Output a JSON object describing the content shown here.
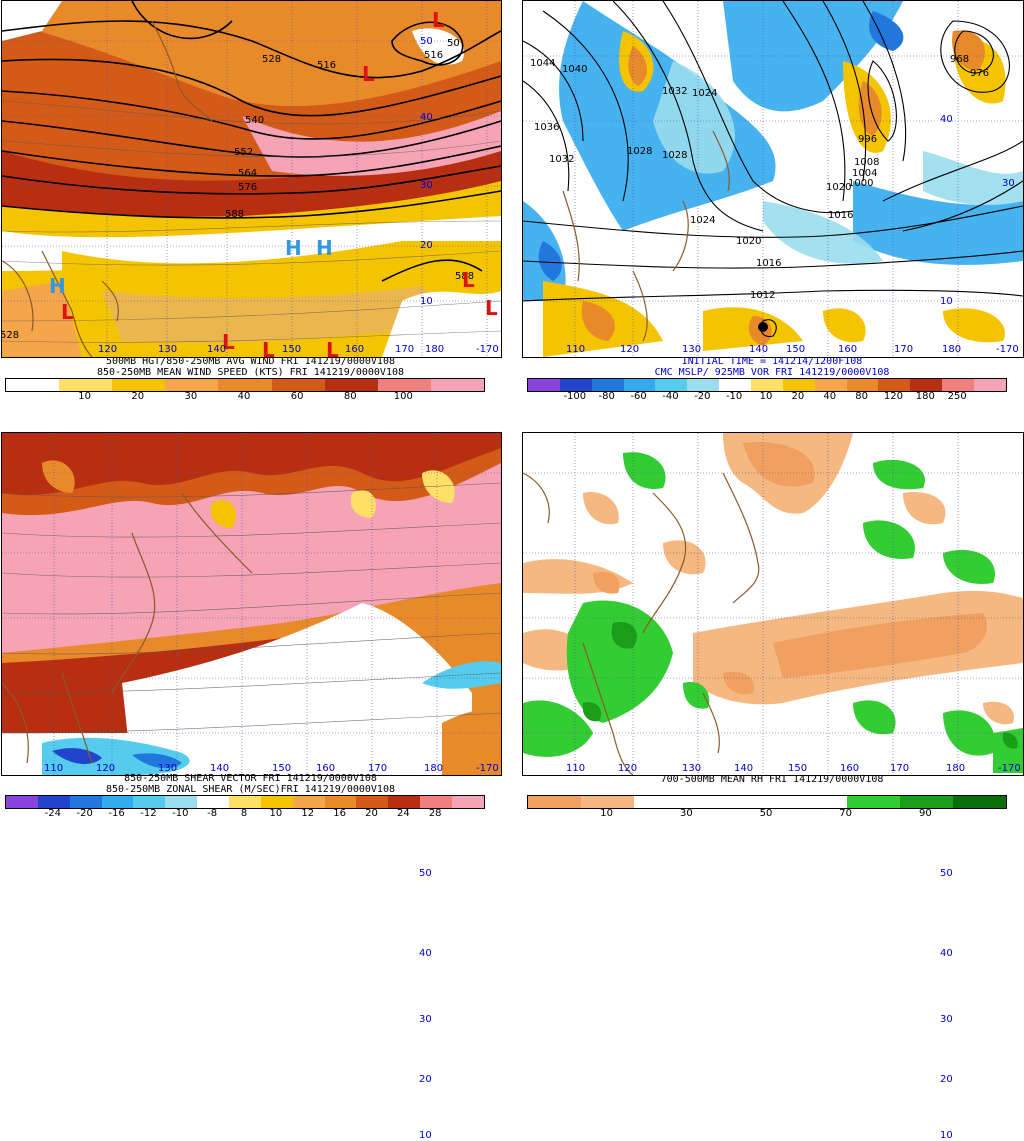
{
  "panels": [
    {
      "id": "tl",
      "caption_lines": [
        "500MB HGT/850-250MB AVG WIND FRI 141219/0000V108",
        "850-250MB MEAN WIND SPEED (KTS) FRI 141219/0000V108"
      ],
      "colorbar": {
        "labels": [
          "10",
          "20",
          "30",
          "40",
          "60",
          "80",
          "100"
        ],
        "colors": [
          "#ffffff",
          "#ffe066",
          "#f5c400",
          "#f5a64a",
          "#e8892a",
          "#d45a18",
          "#b82e10",
          "#f08080",
          "#f5a3b5"
        ]
      },
      "lon_labels": [
        "120",
        "130",
        "140",
        "150",
        "160",
        "170",
        "180",
        "-170"
      ],
      "lat_labels": [
        "50",
        "40",
        "30",
        "20",
        "10"
      ],
      "contour_labels": [
        "528",
        "516",
        "540",
        "552",
        "564",
        "576",
        "588",
        "588",
        "528",
        "50",
        "516"
      ],
      "centers": [
        {
          "t": "H"
        },
        {
          "t": "H"
        },
        {
          "t": "H"
        },
        {
          "t": "L"
        },
        {
          "t": "L"
        },
        {
          "t": "L"
        },
        {
          "t": "L"
        },
        {
          "t": "L"
        },
        {
          "t": "L"
        },
        {
          "t": "L"
        },
        {
          "t": "L"
        }
      ]
    },
    {
      "id": "tr",
      "caption_lines": [
        "INITIAL TIME = 141214/1200F108",
        "CMC MSLP/ 925MB VOR FRI 141219/0000V108"
      ],
      "colorbar": {
        "labels": [
          "-100",
          "-80",
          "-60",
          "-40",
          "-20",
          "-10",
          "10",
          "20",
          "40",
          "80",
          "120",
          "180",
          "250"
        ],
        "colors": [
          "#8844dd",
          "#2244cc",
          "#2277dd",
          "#33aaee",
          "#55ccee",
          "#99ddee",
          "#ffffff",
          "#ffe066",
          "#f5c400",
          "#f5a64a",
          "#e8892a",
          "#d45a18",
          "#b82e10",
          "#f08080",
          "#f5a3b5"
        ]
      },
      "lon_labels": [
        "110",
        "120",
        "130",
        "140",
        "150",
        "160",
        "170",
        "180",
        "-170"
      ],
      "lat_labels": [
        "40",
        "30",
        "10"
      ],
      "contour_labels": [
        "1044",
        "1040",
        "1036",
        "1032",
        "1028",
        "1024",
        "1020",
        "1016",
        "1012",
        "1032",
        "1028",
        "1008",
        "1004",
        "1016",
        "1000",
        "1020",
        "996",
        "976",
        "968",
        "1024"
      ]
    },
    {
      "id": "bl",
      "caption_lines": [
        "850-250MB SHEAR VECTOR FRI 141219/0000V108",
        "850-250MB ZONAL SHEAR (M/SEC)FRI 141219/0000V108"
      ],
      "colorbar": {
        "labels": [
          "-24",
          "-20",
          "-16",
          "-12",
          "-10",
          "-8",
          "8",
          "10",
          "12",
          "16",
          "20",
          "24",
          "28"
        ],
        "colors": [
          "#8844dd",
          "#2244cc",
          "#2277dd",
          "#33aaee",
          "#55ccee",
          "#99ddee",
          "#ffffff",
          "#ffe066",
          "#f5c400",
          "#f5a64a",
          "#e8892a",
          "#d45a18",
          "#b82e10",
          "#f08080",
          "#f5a3b5"
        ]
      },
      "lon_labels": [
        "110",
        "120",
        "130",
        "140",
        "150",
        "160",
        "170",
        "180",
        "-170"
      ],
      "lat_labels": [
        "50",
        "40",
        "30",
        "20",
        "10"
      ]
    },
    {
      "id": "br",
      "caption_lines": [
        "700-500MB MEAN RH FRI 141219/0000V108"
      ],
      "colorbar": {
        "labels": [
          "10",
          "30",
          "50",
          "70",
          "90"
        ],
        "colors": [
          "#f0a060",
          "#f5b880",
          "#ffffff",
          "#ffffff",
          "#ffffff",
          "#ffffff",
          "#33cc33",
          "#1a9e1a",
          "#0a6e0a"
        ]
      },
      "lon_labels": [
        "110",
        "120",
        "130",
        "140",
        "150",
        "160",
        "170",
        "180",
        "-170"
      ],
      "lat_labels": [
        "50",
        "40",
        "30",
        "20",
        "10"
      ]
    }
  ]
}
